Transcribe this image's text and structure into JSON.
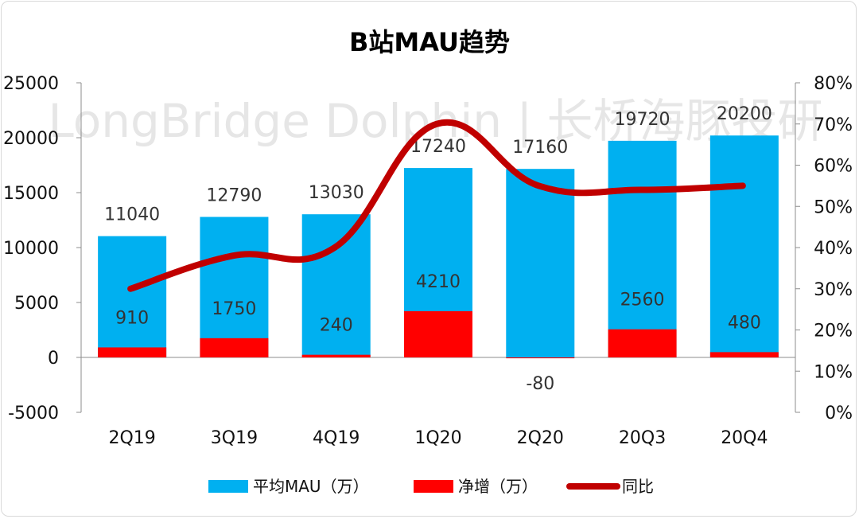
{
  "chart_data": {
    "type": "bar",
    "title": "B站MAU趋势",
    "watermark": "LongBridge Dolphin | 长桥海豚投研",
    "categories": [
      "2Q19",
      "3Q19",
      "4Q19",
      "1Q20",
      "2Q20",
      "20Q3",
      "20Q4"
    ],
    "series": [
      {
        "name": "平均MAU（万）",
        "type": "bar",
        "axis": "left",
        "color": "#00b0f0",
        "values": [
          11040,
          12790,
          13030,
          17240,
          17160,
          19720,
          20200
        ]
      },
      {
        "name": "净增（万）",
        "type": "bar",
        "axis": "left",
        "color": "#ff0000",
        "values": [
          910,
          1750,
          240,
          4210,
          -80,
          2560,
          480
        ]
      },
      {
        "name": "同比",
        "type": "line",
        "axis": "right",
        "color": "#c00000",
        "smooth": true,
        "values": [
          0.3,
          0.38,
          0.4,
          0.7,
          0.55,
          0.54,
          0.55
        ]
      }
    ],
    "y_left": {
      "min": -5000,
      "max": 25000,
      "step": 5000,
      "ticks": [
        "-5000",
        "0",
        "5000",
        "10000",
        "15000",
        "20000",
        "25000"
      ]
    },
    "y_right": {
      "min": 0,
      "max": 0.8,
      "step": 0.1,
      "ticks": [
        "0%",
        "10%",
        "20%",
        "30%",
        "40%",
        "50%",
        "60%",
        "70%",
        "80%"
      ]
    },
    "legend_position": "bottom",
    "grid": false
  }
}
